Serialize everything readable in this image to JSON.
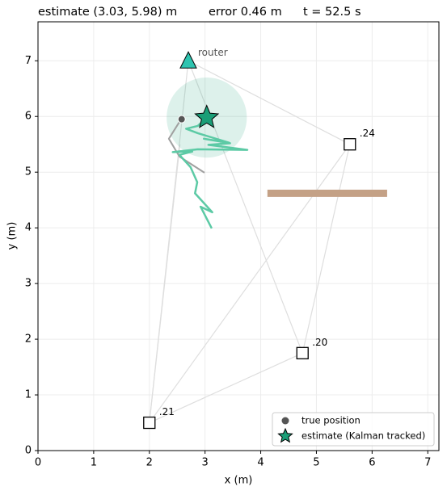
{
  "chart_data": {
    "type": "scatter",
    "title_parts": [
      "estimate (3.03, 5.98) m",
      "error 0.46 m",
      "t = 52.5 s"
    ],
    "xlabel": "x (m)",
    "ylabel": "y (m)",
    "xlim": [
      0,
      7.2
    ],
    "ylim": [
      0,
      7.7
    ],
    "xticks": [
      0,
      1,
      2,
      3,
      4,
      5,
      6,
      7
    ],
    "yticks": [
      0,
      1,
      2,
      3,
      4,
      5,
      6,
      7
    ],
    "grid": true,
    "anchors": [
      {
        "label": ".24",
        "x": 5.6,
        "y": 5.5
      },
      {
        "label": ".20",
        "x": 4.75,
        "y": 1.75
      },
      {
        "label": ".21",
        "x": 2.0,
        "y": 0.5
      }
    ],
    "router": {
      "label": "router",
      "x": 2.7,
      "y": 7.0,
      "color": "#2ec4b0"
    },
    "estimate": {
      "name": "estimate (Kalman tracked)",
      "x": 3.03,
      "y": 5.98,
      "radius": 0.72,
      "color": "#1a9e77"
    },
    "true_position": {
      "name": "true position",
      "x": 2.58,
      "y": 5.95,
      "color": "#555555"
    },
    "track": {
      "color": "#5ccaa5",
      "x": [
        3.12,
        2.92,
        3.13,
        2.82,
        2.86,
        2.74,
        2.54,
        2.77,
        2.42,
        2.87,
        3.76,
        3.06,
        3.45,
        2.98,
        3.43,
        2.87,
        2.66,
        2.87,
        3.02
      ],
      "y": [
        3.99,
        4.38,
        4.28,
        4.62,
        4.82,
        5.09,
        5.31,
        5.37,
        5.36,
        5.41,
        5.4,
        5.49,
        5.52,
        5.6,
        5.53,
        5.7,
        5.78,
        5.83,
        5.97
      ]
    },
    "true_track": {
      "color": "#a0a0a0",
      "x": [
        2.99,
        2.54,
        2.35,
        2.57
      ],
      "y": [
        4.99,
        5.28,
        5.6,
        5.95
      ]
    },
    "wall": {
      "x": [
        4.12,
        6.27
      ],
      "y": 4.62,
      "color": "#c4a186"
    },
    "links": [
      {
        "x": [
          2.7,
          5.6
        ],
        "y": [
          7.0,
          5.5
        ]
      },
      {
        "x": [
          2.7,
          4.75
        ],
        "y": [
          7.0,
          1.75
        ]
      },
      {
        "x": [
          2.7,
          2.0
        ],
        "y": [
          7.0,
          0.5
        ]
      },
      {
        "x": [
          2.0,
          2.55
        ],
        "y": [
          0.5,
          5.5
        ]
      },
      {
        "x": [
          2.0,
          4.75
        ],
        "y": [
          0.5,
          1.75
        ]
      },
      {
        "x": [
          2.0,
          5.6
        ],
        "y": [
          0.5,
          5.5
        ]
      },
      {
        "x": [
          4.75,
          5.6
        ],
        "y": [
          1.75,
          5.5
        ]
      }
    ],
    "legend": "lower right"
  }
}
